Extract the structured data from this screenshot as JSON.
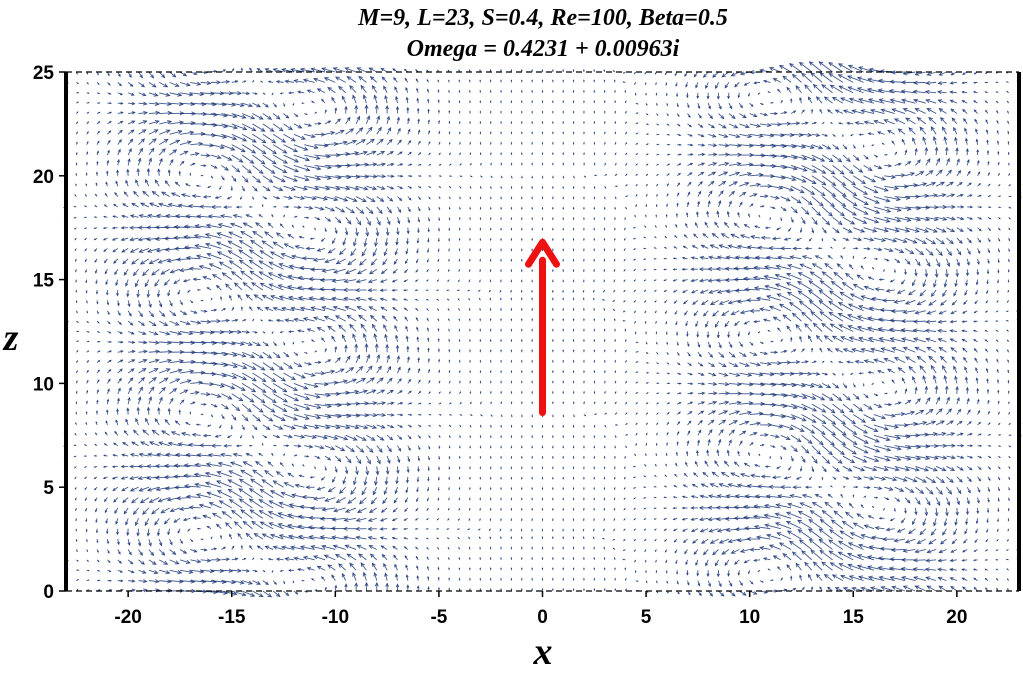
{
  "chart_data": {
    "type": "quiver",
    "title_line1": "M=9, L=23, S=0.4, Re=100, Beta=0.5",
    "title_line2": "Omega = 0.4231 + 0.00963i",
    "xlabel": "x",
    "ylabel": "z",
    "xlim": [
      -23,
      23
    ],
    "ylim": [
      0,
      25
    ],
    "xticks": [
      -20,
      -15,
      -10,
      -5,
      0,
      5,
      10,
      15,
      20
    ],
    "xtick_labels": [
      "-20",
      "-15",
      "-10",
      "-5",
      "0",
      "5",
      "10",
      "15",
      "20"
    ],
    "yticks": [
      0,
      5,
      10,
      15,
      20,
      25
    ],
    "ytick_labels": [
      "0",
      "5",
      "10",
      "15",
      "20",
      "25"
    ],
    "field": {
      "color": "#1f3a7a",
      "grid_nx": 92,
      "grid_nz": 50,
      "vortex_columns_x": [
        -16.5,
        -11,
        11,
        16.5
      ],
      "vertical_wavelength": 11.5,
      "wall_boundaries_x": [
        -23,
        23
      ],
      "dashed_boundaries_z": [
        0,
        25
      ]
    },
    "annotation_arrow": {
      "color": "#ee1111",
      "x": 0,
      "z_start": 8.6,
      "z_end": 16.8
    },
    "grid": false
  }
}
